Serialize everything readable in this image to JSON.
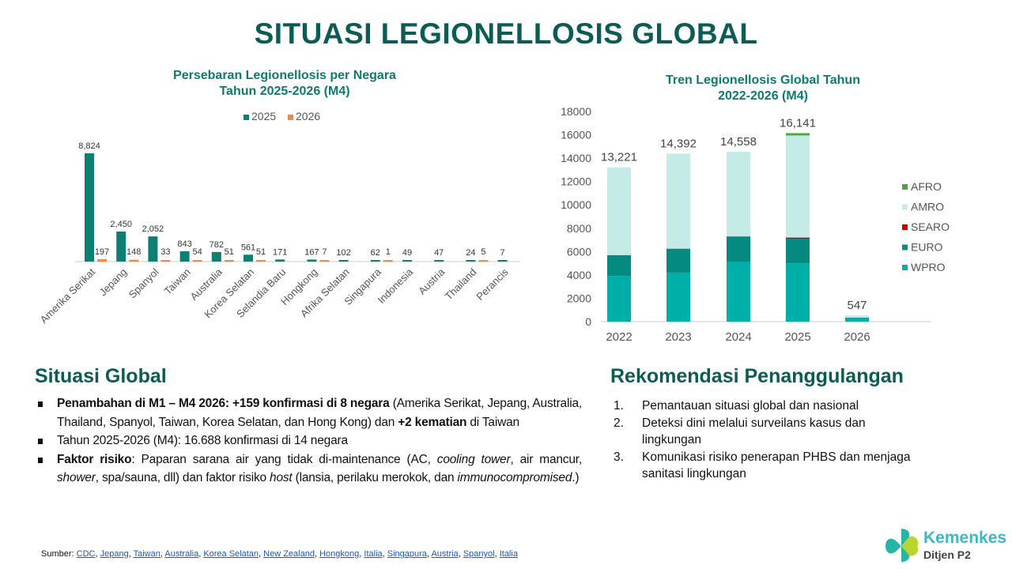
{
  "title": "SITUASI LEGIONELLOSIS GLOBAL",
  "chart_data": [
    {
      "type": "bar",
      "title": "Persebaran Legionellosis per Negara Tahun 2025-2026 (M4)",
      "title_lines": [
        "Persebaran Legionellosis per Negara",
        "Tahun 2025-2026 (M4)"
      ],
      "categories": [
        "Amerika Serikat",
        "Jepang",
        "Spanyol",
        "Taiwan",
        "Australia",
        "Korea Selatan",
        "Selandia Baru",
        "Hongkong",
        "Afrika Selatan",
        "Singapura",
        "Indonesia",
        "Austria",
        "Thailand",
        "Perancis"
      ],
      "series": [
        {
          "name": "2025",
          "color": "#0e7f72",
          "values": [
            8824,
            2450,
            2052,
            843,
            782,
            561,
            171,
            167,
            102,
            62,
            49,
            47,
            24,
            7
          ],
          "labels": [
            "8,824",
            "2,450",
            "2,052",
            "843",
            "782",
            "561",
            "171",
            "167",
            "102",
            "62",
            "49",
            "47",
            "24",
            "7"
          ]
        },
        {
          "name": "2026",
          "color": "#ee8a4a",
          "values": [
            197,
            148,
            33,
            54,
            51,
            51,
            null,
            7,
            null,
            1,
            null,
            null,
            5,
            null
          ],
          "labels": [
            "197",
            "148",
            "33",
            "54",
            "51",
            "51",
            "",
            "7",
            "",
            "1",
            "",
            "",
            "5",
            ""
          ]
        }
      ],
      "legend": "top"
    },
    {
      "type": "bar",
      "stacked": true,
      "title": "Tren Legionellosis Global Tahun 2022-2026 (M4)",
      "title_lines": [
        "Tren Legionellosis Global Tahun",
        "2022-2026 (M4)"
      ],
      "categories": [
        "2022",
        "2023",
        "2024",
        "2025",
        "2026"
      ],
      "ylim": [
        0,
        18000
      ],
      "yticks": [
        "0",
        "2000",
        "4000",
        "6000",
        "8000",
        "10000",
        "12000",
        "14000",
        "16000",
        "18000"
      ],
      "totals": [
        "13,221",
        "14,392",
        "14,558",
        "16,141",
        "547"
      ],
      "series": [
        {
          "name": "WPRO",
          "color": "#00b0a8",
          "values": [
            3900,
            4200,
            5100,
            5000,
            300
          ]
        },
        {
          "name": "EURO",
          "color": "#058a80",
          "values": [
            1800,
            2050,
            2200,
            2100,
            50
          ]
        },
        {
          "name": "SEARO",
          "color": "#c00000",
          "values": [
            0,
            0,
            0,
            100,
            0
          ]
        },
        {
          "name": "AMRO",
          "color": "#c5ebe7",
          "values": [
            7521,
            8142,
            7258,
            8741,
            197
          ]
        },
        {
          "name": "AFRO",
          "color": "#4aa83a",
          "values": [
            0,
            0,
            0,
            200,
            0
          ]
        }
      ],
      "legend": "right"
    }
  ],
  "situasi": {
    "heading": "Situasi Global",
    "bullets": [
      [
        {
          "t": "Penambahan di M1 – M4 2026: +159 konfirmasi di 8 negara",
          "s": "b"
        },
        {
          "t": " (Amerika Serikat, Jepang, Australia, Thailand, Spanyol, Taiwan, Korea Selatan, dan Hong Kong) dan "
        },
        {
          "t": "+2 kematian",
          "s": "b"
        },
        {
          "t": " di Taiwan"
        }
      ],
      [
        {
          "t": "Tahun 2025-2026 (M4): 16.688 konfirmasi di 14 negara"
        }
      ],
      [
        {
          "t": "Faktor risiko",
          "s": "b"
        },
        {
          "t": ": Paparan sarana air yang tidak di-maintenance (AC, "
        },
        {
          "t": "cooling tower",
          "s": "i"
        },
        {
          "t": ", air mancur, "
        },
        {
          "t": "shower",
          "s": "i"
        },
        {
          "t": ", spa/sauna, dll) dan faktor risiko "
        },
        {
          "t": "host",
          "s": "i"
        },
        {
          "t": " (lansia, perilaku merokok, dan "
        },
        {
          "t": "immunocompromised",
          "s": "i"
        },
        {
          "t": ".)"
        }
      ]
    ]
  },
  "rekomendasi": {
    "heading": "Rekomendasi Penanggulangan",
    "items": [
      {
        "num": "1.",
        "text": "Pemantauan situasi global dan nasional"
      },
      {
        "num": "2.",
        "text": "Deteksi dini melalui surveilans kasus dan lingkungan"
      },
      {
        "num": "3.",
        "text": "Komunikasi risiko penerapan PHBS dan menjaga sanitasi lingkungan"
      }
    ]
  },
  "sumber": {
    "label": "Sumber: ",
    "links": [
      "CDC",
      "Jepang",
      "Taiwan",
      "Australia",
      "Korea Selatan",
      "New Zealand",
      "Hongkong",
      "Italia",
      "Singapura",
      "Austria",
      "Spanyol",
      "Italia"
    ]
  },
  "logo": {
    "name": "Kemenkes",
    "sub": "Ditjen P2"
  }
}
